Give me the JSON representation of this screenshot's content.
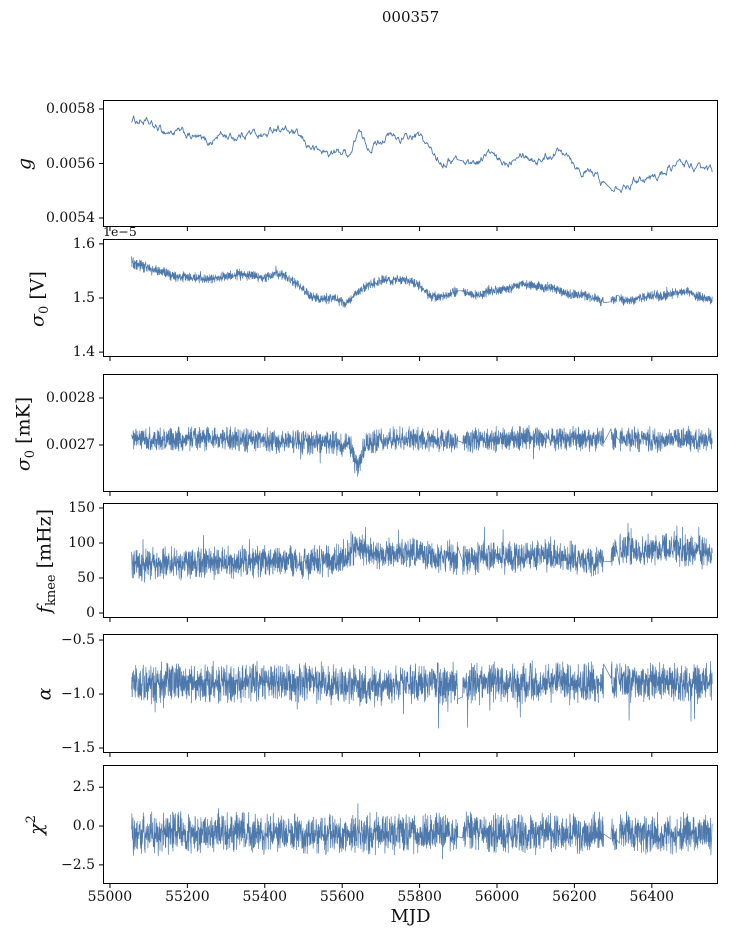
{
  "title": "000357",
  "chart_data": {
    "type": "line",
    "title": "000357",
    "xlabel": "MJD",
    "legend": null,
    "grid": false,
    "colors": {
      "line": "#4d78ab",
      "axis": "#000000",
      "text": "#111111"
    },
    "xlim": [
      54982,
      56571
    ],
    "x_data_range": [
      55056,
      56556
    ],
    "xticks": [
      {
        "v": 55000,
        "label": "55000"
      },
      {
        "v": 55200,
        "label": "55200"
      },
      {
        "v": 55400,
        "label": "55400"
      },
      {
        "v": 55600,
        "label": "55600"
      },
      {
        "v": 55800,
        "label": "55800"
      },
      {
        "v": 56000,
        "label": "56000"
      },
      {
        "v": 56200,
        "label": "56200"
      },
      {
        "v": 56400,
        "label": "56400"
      }
    ],
    "gaps": [
      [
        55899,
        55911
      ],
      [
        56276,
        56294
      ],
      [
        56310,
        56316
      ]
    ],
    "panels": [
      {
        "name": "g",
        "label": {
          "sym": "g",
          "sub": "",
          "sup": "",
          "unit": ""
        },
        "offset_text": "",
        "scale": "",
        "ylim": [
          0.005367,
          0.005833
        ],
        "yticks": [
          {
            "v": 0.0054,
            "label": "0.0054"
          },
          {
            "v": 0.0056,
            "label": "0.0056"
          },
          {
            "v": 0.0058,
            "label": "0.0058"
          }
        ],
        "series": {
          "kind": "walk",
          "points": 850,
          "pull": 0.22,
          "step": 1.1e-05,
          "lw": 0.9,
          "trend": [
            [
              55056,
              0.00576
            ],
            [
              55080,
              0.005755
            ],
            [
              55110,
              0.00573
            ],
            [
              55140,
              0.005715
            ],
            [
              55170,
              0.005715
            ],
            [
              55200,
              0.0057
            ],
            [
              55230,
              0.005685
            ],
            [
              55255,
              0.005675
            ],
            [
              55280,
              0.00571
            ],
            [
              55300,
              0.0057
            ],
            [
              55320,
              0.005695
            ],
            [
              55350,
              0.005715
            ],
            [
              55375,
              0.00571
            ],
            [
              55400,
              0.0057
            ],
            [
              55425,
              0.00574
            ],
            [
              55450,
              0.00572
            ],
            [
              55475,
              0.005705
            ],
            [
              55505,
              0.005665
            ],
            [
              55535,
              0.005645
            ],
            [
              55565,
              0.005635
            ],
            [
              55595,
              0.005645
            ],
            [
              55620,
              0.005635
            ],
            [
              55638,
              0.005745
            ],
            [
              55650,
              0.00567
            ],
            [
              55665,
              0.005655
            ],
            [
              55690,
              0.005685
            ],
            [
              55715,
              0.005705
            ],
            [
              55740,
              0.00569
            ],
            [
              55765,
              0.00569
            ],
            [
              55790,
              0.005705
            ],
            [
              55810,
              0.005675
            ],
            [
              55830,
              0.00563
            ],
            [
              55855,
              0.005605
            ],
            [
              55880,
              0.005615
            ],
            [
              55900,
              0.00562
            ],
            [
              55925,
              0.0056
            ],
            [
              55950,
              0.00561
            ],
            [
              55975,
              0.005645
            ],
            [
              56000,
              0.0056
            ],
            [
              56025,
              0.0056
            ],
            [
              56050,
              0.00566
            ],
            [
              56075,
              0.005625
            ],
            [
              56100,
              0.00561
            ],
            [
              56125,
              0.00563
            ],
            [
              56150,
              0.005645
            ],
            [
              56175,
              0.005655
            ],
            [
              56195,
              0.0056
            ],
            [
              56215,
              0.005565
            ],
            [
              56240,
              0.005565
            ],
            [
              56265,
              0.005535
            ],
            [
              56285,
              0.005505
            ],
            [
              56300,
              0.005535
            ],
            [
              56320,
              0.005515
            ],
            [
              56345,
              0.005535
            ],
            [
              56370,
              0.005555
            ],
            [
              56395,
              0.005545
            ],
            [
              56420,
              0.005565
            ],
            [
              56445,
              0.00559
            ],
            [
              56470,
              0.0056
            ],
            [
              56490,
              0.0056
            ],
            [
              56515,
              0.005575
            ],
            [
              56535,
              0.00557
            ],
            [
              56556,
              0.005565
            ]
          ]
        }
      },
      {
        "name": "sigma0_V",
        "label": {
          "sym": "σ",
          "sub": "0",
          "sup": "",
          "unit": " [V]"
        },
        "offset_text": "1e−5",
        "scale": "1e-5",
        "ylim": [
          1.391,
          1.609
        ],
        "yticks": [
          {
            "v": 1.4,
            "label": "1.4"
          },
          {
            "v": 1.5,
            "label": "1.5"
          },
          {
            "v": 1.6,
            "label": "1.6"
          }
        ],
        "series": {
          "kind": "band",
          "points": 2600,
          "noise": 0.0105,
          "lw": 0.7,
          "noise_env": [
            [
              55056,
              0.014
            ],
            [
              55120,
              0.011
            ],
            [
              55400,
              0.0105
            ],
            [
              56556,
              0.0105
            ]
          ],
          "spike_p": 0.008,
          "spike_amp": 0.012,
          "spike_sign": 0,
          "trend": [
            [
              55056,
              1.565
            ],
            [
              55090,
              1.557
            ],
            [
              55130,
              1.548
            ],
            [
              55170,
              1.54
            ],
            [
              55210,
              1.538
            ],
            [
              55250,
              1.534
            ],
            [
              55290,
              1.54
            ],
            [
              55330,
              1.543
            ],
            [
              55370,
              1.541
            ],
            [
              55400,
              1.537
            ],
            [
              55430,
              1.545
            ],
            [
              55460,
              1.537
            ],
            [
              55490,
              1.522
            ],
            [
              55520,
              1.502
            ],
            [
              55550,
              1.498
            ],
            [
              55580,
              1.5
            ],
            [
              55610,
              1.49
            ],
            [
              55640,
              1.51
            ],
            [
              55670,
              1.525
            ],
            [
              55700,
              1.532
            ],
            [
              55740,
              1.533
            ],
            [
              55780,
              1.531
            ],
            [
              55805,
              1.52
            ],
            [
              55830,
              1.501
            ],
            [
              55860,
              1.503
            ],
            [
              55890,
              1.512
            ],
            [
              55920,
              1.511
            ],
            [
              55950,
              1.504
            ],
            [
              55980,
              1.513
            ],
            [
              56010,
              1.514
            ],
            [
              56040,
              1.52
            ],
            [
              56070,
              1.526
            ],
            [
              56100,
              1.522
            ],
            [
              56130,
              1.52
            ],
            [
              56160,
              1.514
            ],
            [
              56190,
              1.506
            ],
            [
              56220,
              1.506
            ],
            [
              56250,
              1.5
            ],
            [
              56280,
              1.492
            ],
            [
              56310,
              1.5
            ],
            [
              56340,
              1.494
            ],
            [
              56370,
              1.5
            ],
            [
              56400,
              1.505
            ],
            [
              56430,
              1.503
            ],
            [
              56460,
              1.509
            ],
            [
              56490,
              1.513
            ],
            [
              56520,
              1.502
            ],
            [
              56556,
              1.496
            ]
          ]
        }
      },
      {
        "name": "sigma0_mK",
        "label": {
          "sym": "σ",
          "sub": "0",
          "sup": "",
          "unit": " [mK]"
        },
        "offset_text": "",
        "scale": "",
        "ylim": [
          0.0026,
          0.002851
        ],
        "yticks": [
          {
            "v": 0.0027,
            "label": "0.0027"
          },
          {
            "v": 0.0028,
            "label": "0.0028"
          }
        ],
        "series": {
          "kind": "band",
          "points": 2600,
          "noise": 3e-05,
          "lw": 0.7,
          "spike_p": 0.015,
          "spike_amp": 2.2e-05,
          "spike_sign": 0,
          "trend": [
            [
              55056,
              0.002712
            ],
            [
              55150,
              0.00271
            ],
            [
              55250,
              0.002712
            ],
            [
              55350,
              0.002711
            ],
            [
              55420,
              0.002708
            ],
            [
              55480,
              0.002706
            ],
            [
              55540,
              0.002705
            ],
            [
              55580,
              0.002702
            ],
            [
              55620,
              0.002698
            ],
            [
              55641,
              0.002648
            ],
            [
              55660,
              0.002702
            ],
            [
              55700,
              0.00271
            ],
            [
              55800,
              0.002712
            ],
            [
              55900,
              0.00271
            ],
            [
              56000,
              0.002712
            ],
            [
              56100,
              0.002714
            ],
            [
              56200,
              0.002712
            ],
            [
              56300,
              0.002714
            ],
            [
              56400,
              0.002711
            ],
            [
              56500,
              0.002713
            ],
            [
              56556,
              0.002711
            ]
          ]
        }
      },
      {
        "name": "f_knee",
        "label": {
          "sym": "f",
          "sub": "knee",
          "sup": "",
          "unit": " [mHz]"
        },
        "offset_text": "",
        "scale": "",
        "ylim": [
          -7.1,
          157.1
        ],
        "yticks": [
          {
            "v": 0,
            "label": "0"
          },
          {
            "v": 50,
            "label": "50"
          },
          {
            "v": 100,
            "label": "100"
          },
          {
            "v": 150,
            "label": "150"
          }
        ],
        "series": {
          "kind": "band",
          "points": 2600,
          "noise": 26,
          "lw": 0.7,
          "spike_p": 0.018,
          "spike_amp": 42,
          "spike_sign": 1,
          "trend": [
            [
              55056,
              68
            ],
            [
              55150,
              70
            ],
            [
              55250,
              72
            ],
            [
              55350,
              70
            ],
            [
              55420,
              74
            ],
            [
              55500,
              72
            ],
            [
              55560,
              75
            ],
            [
              55600,
              78
            ],
            [
              55630,
              92
            ],
            [
              55645,
              95
            ],
            [
              55665,
              85
            ],
            [
              55700,
              84
            ],
            [
              55750,
              86
            ],
            [
              55800,
              87
            ],
            [
              55850,
              80
            ],
            [
              55900,
              77
            ],
            [
              55950,
              80
            ],
            [
              56000,
              82
            ],
            [
              56050,
              79
            ],
            [
              56100,
              80
            ],
            [
              56150,
              82
            ],
            [
              56200,
              77
            ],
            [
              56250,
              74
            ],
            [
              56290,
              86
            ],
            [
              56330,
              92
            ],
            [
              56380,
              88
            ],
            [
              56430,
              93
            ],
            [
              56480,
              90
            ],
            [
              56520,
              89
            ],
            [
              56556,
              84
            ]
          ]
        }
      },
      {
        "name": "alpha",
        "label": {
          "sym": "α",
          "sub": "",
          "sup": "",
          "unit": ""
        },
        "offset_text": "",
        "scale": "",
        "ylim": [
          -1.546,
          -0.444
        ],
        "yticks": [
          {
            "v": -1.5,
            "label": "−1.5"
          },
          {
            "v": -1.0,
            "label": "−1.0"
          },
          {
            "v": -0.5,
            "label": "−0.5"
          }
        ],
        "series": {
          "kind": "band",
          "points": 2600,
          "noise": 0.21,
          "lw": 0.7,
          "spike_p": 0.015,
          "spike_amp": 0.33,
          "spike_sign": -1,
          "trend": [
            [
              55056,
              -0.9
            ],
            [
              55200,
              -0.89
            ],
            [
              55350,
              -0.9
            ],
            [
              55500,
              -0.89
            ],
            [
              55640,
              -0.93
            ],
            [
              55800,
              -0.9
            ],
            [
              55950,
              -0.91
            ],
            [
              56100,
              -0.89
            ],
            [
              56250,
              -0.9
            ],
            [
              56400,
              -0.89
            ],
            [
              56556,
              -0.9
            ]
          ]
        }
      },
      {
        "name": "chi2",
        "label": {
          "sym": "χ",
          "sub": "",
          "sup": "2",
          "unit": ""
        },
        "offset_text": "",
        "scale": "",
        "ylim": [
          -3.73,
          3.93
        ],
        "yticks": [
          {
            "v": -2.5,
            "label": "−2.5"
          },
          {
            "v": 0.0,
            "label": "0.0"
          },
          {
            "v": 2.5,
            "label": "2.5"
          }
        ],
        "series": {
          "kind": "band",
          "points": 2600,
          "noise": 1.45,
          "lw": 0.7,
          "spike_p": 0.025,
          "spike_amp": 1.0,
          "spike_sign": 0,
          "trend": [
            [
              55056,
              -0.5
            ],
            [
              55300,
              -0.45
            ],
            [
              55600,
              -0.5
            ],
            [
              55900,
              -0.45
            ],
            [
              56200,
              -0.5
            ],
            [
              56556,
              -0.45
            ]
          ]
        }
      }
    ]
  }
}
